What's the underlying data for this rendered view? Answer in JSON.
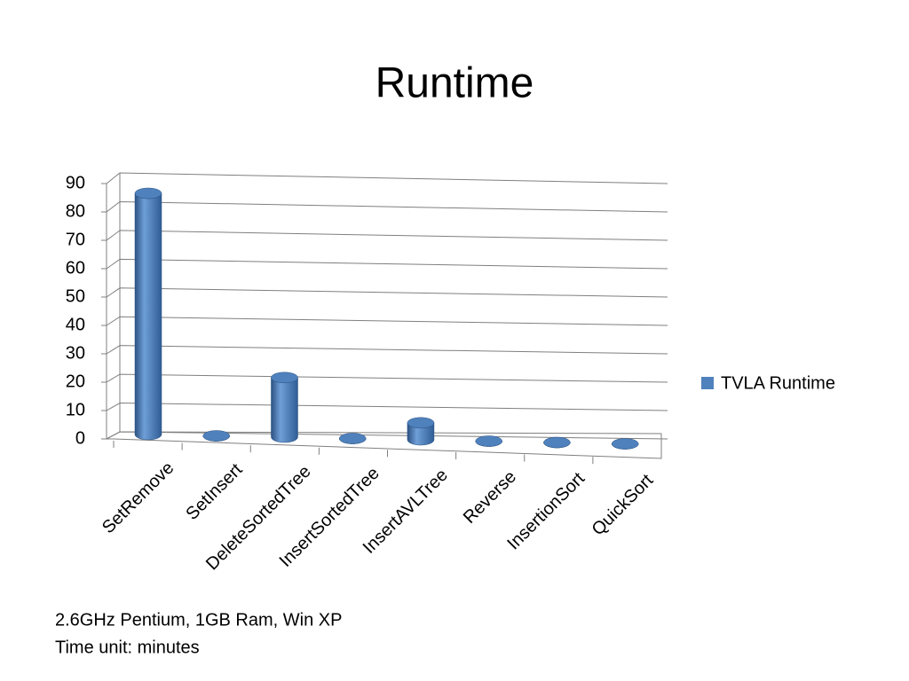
{
  "chart_data": {
    "type": "bar",
    "title": "Runtime",
    "categories": [
      "SetRemove",
      "SetInsert",
      "DeleteSortedTree",
      "InsertSortedTree",
      "InsertAVLTree",
      "Reverse",
      "InsertionSort",
      "QuickSort"
    ],
    "series": [
      {
        "name": "TVLA Runtime",
        "color": "#4f81bd",
        "values": [
          85,
          0,
          21,
          0,
          6,
          0,
          0,
          0
        ]
      }
    ],
    "ylim": [
      0,
      90
    ],
    "yticks": [
      0,
      10,
      20,
      30,
      40,
      50,
      60,
      70,
      80,
      90
    ],
    "grid": true,
    "legend": "right",
    "notes": [
      "2.6GHz Pentium, 1GB Ram, Win XP",
      "Time unit: minutes"
    ]
  }
}
